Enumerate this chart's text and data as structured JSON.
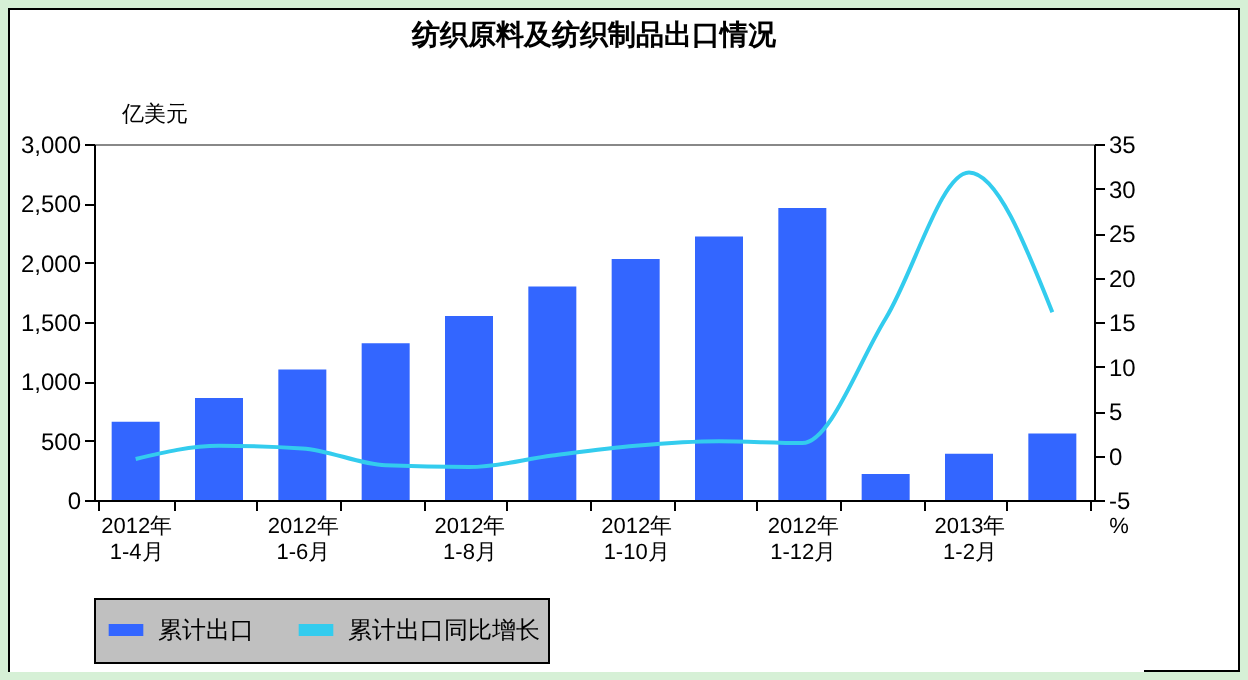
{
  "chart_data": {
    "type": "bar",
    "title": "纺织原料及纺织制品出口情况",
    "ylabel": "亿美元",
    "y2label": "%",
    "categories": [
      "2012年\n1-4月",
      null,
      "2012年\n1-6月",
      null,
      "2012年\n1-8月",
      null,
      "2012年\n1-10月",
      null,
      "2012年\n1-12月",
      null,
      "2013年\n1-2月",
      null
    ],
    "series": [
      {
        "name": "累计出口",
        "color": "#3366ff",
        "values": [
          660,
          860,
          1100,
          1320,
          1550,
          1800,
          2030,
          2220,
          2460,
          220,
          390,
          560
        ]
      },
      {
        "name": "累计出口同比增长",
        "type": "line",
        "axis": "y2",
        "color": "#33ccee",
        "values": [
          -0.4,
          1.1,
          0.8,
          -1.1,
          -1.3,
          0,
          1.1,
          1.6,
          1.4,
          15.4,
          31.8,
          16.1
        ]
      }
    ],
    "ylim": [
      0,
      3000
    ],
    "yticks": [
      {
        "value": 0,
        "label": "0"
      },
      {
        "value": 500,
        "label": "500"
      },
      {
        "value": 1000,
        "label": "1,000"
      },
      {
        "value": 1500,
        "label": "1,500"
      },
      {
        "value": 2000,
        "label": "2,000"
      },
      {
        "value": 2500,
        "label": "2,500"
      },
      {
        "value": 3000,
        "label": "3,000"
      }
    ],
    "y2lim": [
      -5,
      35
    ],
    "y2ticks": [
      -5,
      0,
      5,
      10,
      15,
      20,
      25,
      30,
      35
    ],
    "grid": false,
    "legend": "bottom"
  }
}
